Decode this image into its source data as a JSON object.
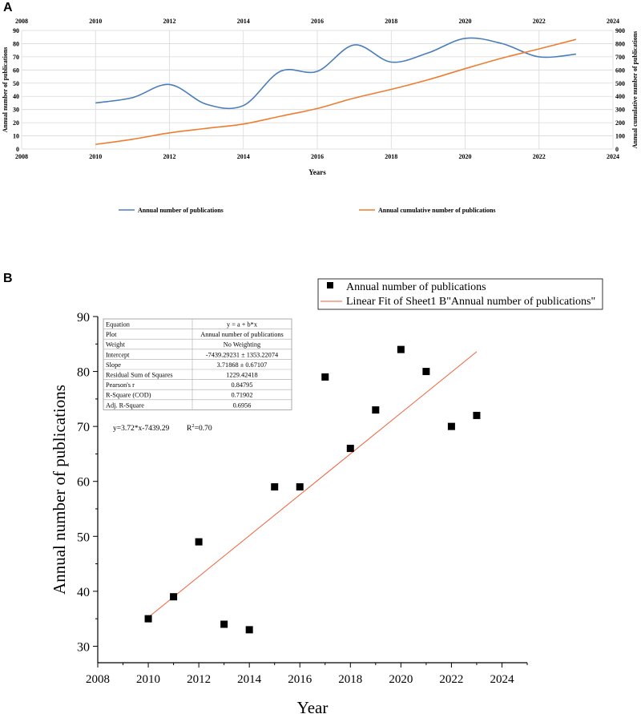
{
  "chart_data": [
    {
      "panel_label": "A",
      "type": "line",
      "x": [
        2010,
        2011,
        2012,
        2013,
        2014,
        2015,
        2016,
        2017,
        2018,
        2019,
        2020,
        2021,
        2022,
        2023
      ],
      "series": [
        {
          "name": "Annual number of publications",
          "axis": "left",
          "color": "#4a7ebb",
          "values": [
            35,
            39,
            49,
            34,
            33,
            59,
            59,
            79,
            66,
            73,
            84,
            80,
            70,
            72
          ]
        },
        {
          "name": "Annual cumulative number of publications",
          "axis": "right",
          "color": "#ed7d31",
          "values": [
            35,
            74,
            123,
            157,
            190,
            249,
            308,
            387,
            453,
            526,
            610,
            690,
            760,
            832
          ]
        }
      ],
      "xlabel": "Years",
      "ylabel_left": "Annual number of publications",
      "ylabel_right": "Annual cumulative number of publications",
      "xlim": [
        2008,
        2024
      ],
      "ylim_left": [
        0,
        90
      ],
      "ylim_right": [
        0,
        900
      ],
      "xticks": [
        "2008",
        "2010",
        "2012",
        "2014",
        "2016",
        "2018",
        "2020",
        "2022",
        "2024"
      ],
      "yticks_left": [
        "0",
        "10",
        "20",
        "30",
        "40",
        "50",
        "60",
        "70",
        "80",
        "90"
      ],
      "yticks_right": [
        "0",
        "100",
        "200",
        "300",
        "400",
        "500",
        "600",
        "700",
        "800",
        "900"
      ],
      "grid": true,
      "legend_position": "bottom"
    },
    {
      "panel_label": "B",
      "type": "scatter",
      "x": [
        2010,
        2011,
        2012,
        2013,
        2014,
        2015,
        2016,
        2017,
        2018,
        2019,
        2020,
        2021,
        2022,
        2023
      ],
      "series": [
        {
          "name": "Annual number of publications",
          "values": [
            35,
            39,
            49,
            34,
            33,
            59,
            59,
            79,
            66,
            73,
            84,
            80,
            70,
            72
          ]
        }
      ],
      "fit": {
        "name": "Linear Fit of Sheet1 B\"Annual number of publications\"",
        "color": "#f0603a",
        "intercept": -7439.29231,
        "slope": 3.71868,
        "x_range": [
          2010,
          2023
        ]
      },
      "xlabel": "Year",
      "ylabel": "Annual number of publications",
      "xlim": [
        2008,
        2025
      ],
      "ylim": [
        27,
        90
      ],
      "xticks": [
        "2008",
        "2010",
        "2012",
        "2014",
        "2016",
        "2018",
        "2020",
        "2022",
        "2024"
      ],
      "yticks": [
        "30",
        "40",
        "50",
        "60",
        "70",
        "80",
        "90"
      ],
      "grid": false,
      "legend_position": "top-right",
      "stats_table": [
        [
          "Equation",
          "y = a + b*x"
        ],
        [
          "Plot",
          "Annual number of publications"
        ],
        [
          "Weight",
          "No Weighting"
        ],
        [
          "Intercept",
          "-7439.29231 ± 1353.22074"
        ],
        [
          "Slope",
          "3.71868 ± 0.67107"
        ],
        [
          "Residual Sum of Squares",
          "1229.42418"
        ],
        [
          "Pearson's r",
          "0.84795"
        ],
        [
          "R-Square (COD)",
          "0.71902"
        ],
        [
          "Adj. R-Square",
          "0.6956"
        ]
      ],
      "equation_text": "y=3.72*x-7439.29",
      "r2_label": "R",
      "r2_sup": "2",
      "r2_value": "=0.70"
    }
  ]
}
